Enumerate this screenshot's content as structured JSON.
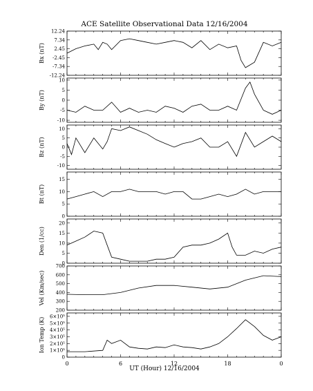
{
  "title": "ACE Satellite Observational Data  12/16/2004",
  "xlabel": "UT (Hour)  12/16/2004",
  "x_ticks": [
    "0",
    "6",
    "12",
    "18",
    "0"
  ],
  "chart_data": [
    {
      "type": "line",
      "ylabel": "Bx (nT)",
      "ylim": [
        -12.24,
        12.24
      ],
      "y_ticks": [
        "12.24",
        "7.34",
        "2.45",
        "-2.45",
        "-7.34",
        "-12.24"
      ],
      "y_tick_values": [
        12.24,
        7.34,
        2.45,
        -2.45,
        -7.34,
        -12.24
      ],
      "series": [
        {
          "x": [
            0,
            1,
            2,
            3,
            3.5,
            4,
            4.5,
            5,
            6,
            7,
            8,
            9,
            10,
            11,
            12,
            13,
            14,
            15,
            16,
            17,
            18,
            19,
            19.5,
            20,
            21,
            22,
            23,
            24
          ],
          "values": [
            0,
            2.5,
            4,
            5,
            2,
            6,
            5,
            2,
            7,
            8,
            7,
            6,
            5,
            6,
            7,
            6,
            3,
            7,
            2,
            5,
            3,
            4,
            -4,
            -8,
            -5,
            6,
            4,
            6
          ]
        }
      ]
    },
    {
      "type": "line",
      "ylabel": "By (nT)",
      "ylim": [
        -11,
        11
      ],
      "y_ticks": [
        "10",
        "5",
        "0",
        "-5",
        "-10"
      ],
      "y_tick_values": [
        10,
        5,
        0,
        -5,
        -10
      ],
      "series": [
        {
          "x": [
            0,
            1,
            2,
            3,
            4,
            5,
            6,
            7,
            8,
            9,
            10,
            11,
            12,
            13,
            14,
            15,
            16,
            17,
            18,
            19,
            20,
            20.5,
            21,
            22,
            23,
            24
          ],
          "values": [
            -5,
            -6,
            -3,
            -5,
            -5,
            -1,
            -6,
            -4,
            -6,
            -5,
            -6,
            -3,
            -4,
            -6,
            -3,
            -2,
            -5,
            -5,
            -3,
            -5,
            6,
            9,
            3,
            -5,
            -7,
            -5
          ]
        }
      ]
    },
    {
      "type": "line",
      "ylabel": "Bz (nT)",
      "ylim": [
        -12,
        12
      ],
      "y_ticks": [
        "10",
        "5",
        "0",
        "-5",
        "-10"
      ],
      "y_tick_values": [
        10,
        5,
        0,
        -5,
        -10
      ],
      "series": [
        {
          "x": [
            0,
            0.5,
            1,
            2,
            3,
            4,
            4.5,
            5,
            6,
            7,
            8,
            9,
            10,
            11,
            12,
            13,
            14,
            15,
            16,
            17,
            18,
            19,
            20,
            21,
            22,
            23,
            24
          ],
          "values": [
            2,
            -4,
            5,
            -3,
            5,
            -1,
            3,
            10,
            9,
            11,
            9,
            7,
            4,
            2,
            0,
            2,
            3,
            5,
            0,
            0,
            3,
            -5,
            8,
            0,
            3,
            6,
            3
          ]
        }
      ]
    },
    {
      "type": "line",
      "ylabel": "Bt (nT)",
      "ylim": [
        0,
        18
      ],
      "y_ticks": [
        "15",
        "10",
        "5",
        "0"
      ],
      "y_tick_values": [
        15,
        10,
        5,
        0
      ],
      "series": [
        {
          "x": [
            0,
            1,
            2,
            3,
            4,
            5,
            6,
            7,
            8,
            9,
            10,
            11,
            12,
            13,
            14,
            15,
            16,
            17,
            18,
            19,
            20,
            21,
            22,
            23,
            24
          ],
          "values": [
            7,
            8,
            9,
            10,
            8,
            10,
            10,
            11,
            10,
            10,
            10,
            9,
            10,
            10,
            7,
            7,
            8,
            9,
            8,
            9,
            11,
            9,
            10,
            10,
            10
          ]
        }
      ]
    },
    {
      "type": "line",
      "ylabel": "Den (1/cc)",
      "ylim": [
        0,
        22
      ],
      "y_ticks": [
        "20",
        "15",
        "10",
        "5",
        "0"
      ],
      "y_tick_values": [
        20,
        15,
        10,
        5,
        0
      ],
      "series": [
        {
          "x": [
            0,
            1,
            2,
            3,
            4,
            4.5,
            5,
            6,
            7,
            8,
            9,
            10,
            11,
            12,
            13,
            14,
            15,
            16,
            17,
            18,
            18.5,
            19,
            20,
            21,
            22,
            23,
            24
          ],
          "values": [
            9,
            11,
            13,
            16,
            15,
            9,
            3,
            2,
            1,
            1,
            1,
            2,
            2,
            3,
            8,
            9,
            9,
            10,
            12,
            15,
            8,
            4,
            4,
            6,
            5,
            7,
            8
          ]
        }
      ]
    },
    {
      "type": "line",
      "ylabel": "Vel (Km/sec)",
      "ylim": [
        200,
        700
      ],
      "y_ticks": [
        "700",
        "600",
        "500",
        "400",
        "300",
        "200"
      ],
      "y_tick_values": [
        700,
        600,
        500,
        400,
        300,
        200
      ],
      "series": [
        {
          "x": [
            0,
            2,
            4,
            6,
            8,
            10,
            12,
            14,
            16,
            18,
            20,
            22,
            24
          ],
          "values": [
            380,
            375,
            375,
            400,
            450,
            480,
            480,
            460,
            440,
            460,
            540,
            590,
            580
          ]
        }
      ]
    },
    {
      "type": "line",
      "ylabel": "Ion Temp (K)",
      "ylim": [
        0,
        650000
      ],
      "y_ticks": [
        "6×10⁵",
        "5×10⁵",
        "4×10⁵",
        "3×10⁵",
        "2×10⁵",
        "1×10⁵",
        "0"
      ],
      "y_tick_values": [
        600000,
        500000,
        400000,
        300000,
        200000,
        100000,
        0
      ],
      "series": [
        {
          "x": [
            0,
            2,
            4,
            4.5,
            5,
            6,
            7,
            8,
            9,
            10,
            11,
            12,
            13,
            14,
            15,
            16,
            17,
            18,
            19,
            20,
            21,
            22,
            23,
            24
          ],
          "values": [
            80000,
            80000,
            100000,
            250000,
            200000,
            250000,
            150000,
            130000,
            120000,
            150000,
            140000,
            180000,
            150000,
            140000,
            120000,
            150000,
            200000,
            300000,
            420000,
            550000,
            450000,
            320000,
            250000,
            300000
          ]
        }
      ]
    }
  ]
}
